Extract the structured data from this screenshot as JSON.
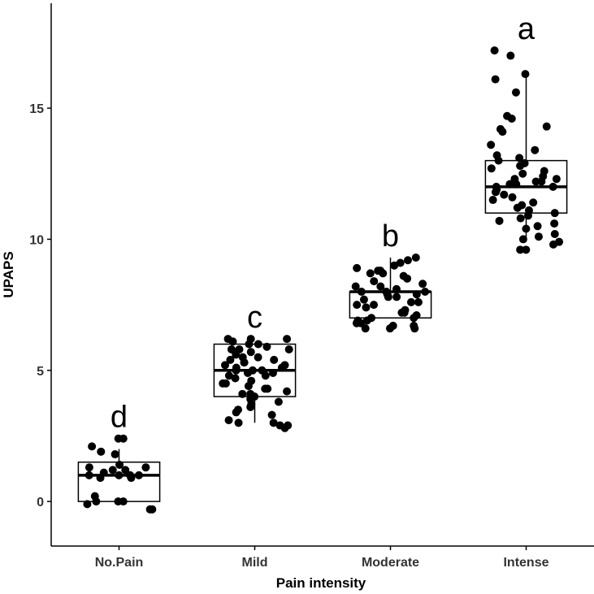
{
  "chart_data": {
    "type": "box",
    "title": "",
    "xlabel": "Pain intensity",
    "ylabel": "UPAPS",
    "categories": [
      "No.Pain",
      "Mild",
      "Moderate",
      "Intense"
    ],
    "ylim": [
      -1.7,
      19
    ],
    "yticks": [
      0,
      5,
      10,
      15
    ],
    "grid": false,
    "legend": "none",
    "boxes": [
      {
        "category": "No.Pain",
        "whisker_low": 0,
        "q1": 0,
        "median": 1,
        "q3": 1.5,
        "whisker_high": 2,
        "letter": "d"
      },
      {
        "category": "Mild",
        "whisker_low": 3,
        "q1": 4,
        "median": 5,
        "q3": 6,
        "whisker_high": 6,
        "letter": "c"
      },
      {
        "category": "Moderate",
        "whisker_low": 7,
        "q1": 7,
        "median": 8,
        "q3": 8,
        "whisker_high": 9.3,
        "letter": "b"
      },
      {
        "category": "Intense",
        "whisker_low": 10,
        "q1": 11,
        "median": 12,
        "q3": 13,
        "whisker_high": 16.3,
        "letter": "a"
      }
    ],
    "points": [
      {
        "category": "No.Pain",
        "values": [
          2.4,
          2.4,
          2.1,
          1.9,
          1.8,
          1.4,
          1.3,
          1.3,
          1.2,
          1.2,
          1.1,
          1.0,
          1.0,
          1.0,
          1.0,
          0.9,
          0.9,
          0.2,
          0.0,
          0.0,
          0.0,
          -0.1,
          -0.3,
          -0.3
        ]
      },
      {
        "category": "Mild",
        "values": [
          6.2,
          6.2,
          6.2,
          6.1,
          6.0,
          6.0,
          5.9,
          5.8,
          5.8,
          5.8,
          5.7,
          5.6,
          5.5,
          5.5,
          5.4,
          5.4,
          5.3,
          5.3,
          5.2,
          5.2,
          5.1,
          5.1,
          5.0,
          5.0,
          5.0,
          4.9,
          4.9,
          4.8,
          4.8,
          4.7,
          4.6,
          4.5,
          4.5,
          4.4,
          4.3,
          4.3,
          4.2,
          4.1,
          4.1,
          4.0,
          3.9,
          3.8,
          3.7,
          3.6,
          3.5,
          3.4,
          3.3,
          3.1,
          3.0,
          3.0,
          2.9,
          2.9,
          2.8
        ]
      },
      {
        "category": "Moderate",
        "values": [
          9.3,
          9.2,
          9.1,
          9.0,
          8.9,
          8.8,
          8.8,
          8.7,
          8.7,
          8.6,
          8.5,
          8.4,
          8.3,
          8.2,
          8.2,
          8.1,
          8.0,
          8.0,
          8.0,
          7.9,
          7.9,
          7.8,
          7.8,
          7.7,
          7.6,
          7.6,
          7.5,
          7.5,
          7.4,
          7.3,
          7.2,
          7.2,
          7.1,
          7.0,
          7.0,
          6.9,
          6.9,
          6.8,
          6.8,
          6.7,
          6.7,
          6.6,
          6.6,
          6.6
        ]
      },
      {
        "category": "Intense",
        "values": [
          17.2,
          17.0,
          16.3,
          16.1,
          15.6,
          14.7,
          14.6,
          14.3,
          14.2,
          14.1,
          13.6,
          13.4,
          13.2,
          13.1,
          13.0,
          12.9,
          12.8,
          12.7,
          12.6,
          12.5,
          12.4,
          12.3,
          12.3,
          12.2,
          12.2,
          12.1,
          12.1,
          12.0,
          12.0,
          11.9,
          11.8,
          11.7,
          11.6,
          11.5,
          11.4,
          11.3,
          11.2,
          11.1,
          11.0,
          10.9,
          10.8,
          10.7,
          10.6,
          10.5,
          10.4,
          10.2,
          10.1,
          10.0,
          9.9,
          9.8,
          9.6,
          9.6
        ]
      }
    ]
  }
}
